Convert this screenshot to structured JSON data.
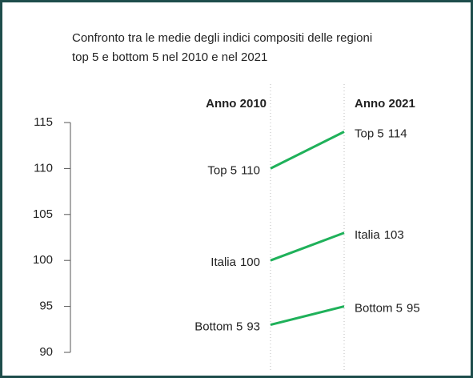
{
  "chart_data": {
    "type": "slope",
    "title": [
      "Confronto tra le medie degli indici compositi delle regioni",
      "top 5 e bottom 5 nel 2010 e nel 2021"
    ],
    "categories": [
      "Anno 2010",
      "Anno 2021"
    ],
    "series": [
      {
        "name": "Top 5",
        "color": "#1fb15a",
        "values": [
          110,
          114
        ]
      },
      {
        "name": "Italia",
        "color": "#1fb15a",
        "values": [
          100,
          103
        ]
      },
      {
        "name": "Bottom 5",
        "color": "#1fb15a",
        "values": [
          93,
          95
        ]
      }
    ],
    "ylim": [
      90,
      115
    ],
    "yticks": [
      90,
      95,
      100,
      105,
      110,
      115
    ]
  }
}
